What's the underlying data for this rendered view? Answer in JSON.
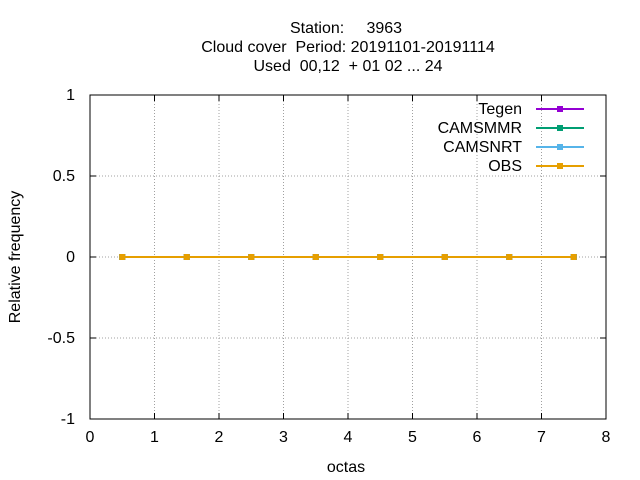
{
  "chart_data": {
    "type": "line",
    "title_lines": [
      "Station:     3963",
      "Cloud cover  Period: 20191101-20191114",
      "Used  00,12  + 01 02 ... 24"
    ],
    "xlabel": "octas",
    "ylabel": "Relative frequency",
    "xlim": [
      0,
      8
    ],
    "ylim": [
      -1,
      1
    ],
    "x_ticks": [
      "0",
      "1",
      "2",
      "3",
      "4",
      "5",
      "6",
      "7",
      "8"
    ],
    "y_ticks": [
      "-1",
      "-0.5",
      "0",
      "0.5",
      "1"
    ],
    "x_tick_values": [
      0,
      1,
      2,
      3,
      4,
      5,
      6,
      7,
      8
    ],
    "y_tick_values": [
      -1,
      -0.5,
      0,
      0.5,
      1
    ],
    "grid": true,
    "legend_position": "top-right",
    "x": [
      0.5,
      1.5,
      2.5,
      3.5,
      4.5,
      5.5,
      6.5,
      7.5
    ],
    "series": [
      {
        "name": "Tegen",
        "color": "#9400d3",
        "values": [
          0,
          0,
          0,
          0,
          0,
          0,
          0,
          0
        ]
      },
      {
        "name": "CAMSMMR",
        "color": "#009e73",
        "values": [
          0,
          0,
          0,
          0,
          0,
          0,
          0,
          0
        ]
      },
      {
        "name": "CAMSNRT",
        "color": "#56b4e9",
        "values": [
          0,
          0,
          0,
          0,
          0,
          0,
          0,
          0
        ]
      },
      {
        "name": "OBS",
        "color": "#e69f00",
        "values": [
          0,
          0,
          0,
          0,
          0,
          0,
          0,
          0
        ]
      }
    ]
  }
}
